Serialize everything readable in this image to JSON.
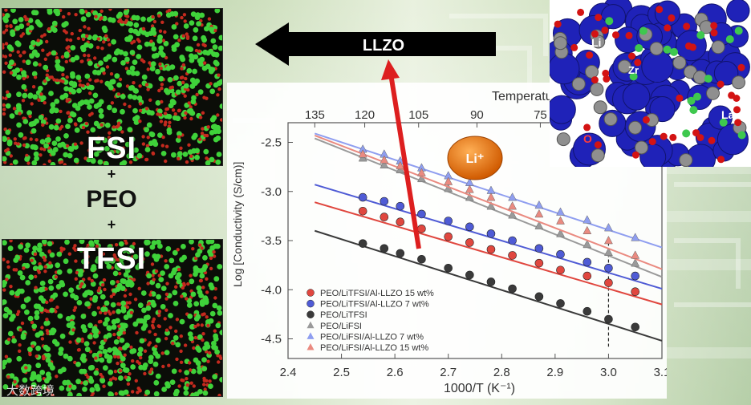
{
  "left_labels": {
    "top": "FSI",
    "plus_1": "+",
    "middle": "PEO",
    "plus_2": "+",
    "bottom": "TFSI"
  },
  "arrow_label": "LLZO",
  "ion_badge": "Li⁺",
  "crystal_labels": [
    "Li",
    "Zr",
    "La",
    "O"
  ],
  "watermark": "大数跨境",
  "colors": {
    "red": "#e0473f",
    "blue": "#4f5bd5",
    "black": "#3a3a3a",
    "gray": "#9a9a9a",
    "light_blue": "#8f9ef0",
    "light_red": "#ea8a80",
    "arrow": "#dd1f1f",
    "badge": "#e8730e"
  },
  "chart_data": {
    "type": "scatter",
    "title": "",
    "xlabel": "1000/T (K⁻¹)",
    "ylabel": "Log [Conductivity (S/cm)]",
    "top_axis_label": "Temperature (°C)",
    "xlim": [
      2.4,
      3.1
    ],
    "ylim": [
      -4.7,
      -2.3
    ],
    "x_ticks": [
      "2.4",
      "2.5",
      "2.6",
      "2.7",
      "2.8",
      "2.9",
      "3.0",
      "3.1"
    ],
    "y_ticks": [
      "-2.5",
      "-3.0",
      "-3.5",
      "-4.0",
      "-4.5"
    ],
    "y_tick_values": [
      -2.5,
      -3.0,
      -3.5,
      -4.0,
      -4.5
    ],
    "x_tick_values": [
      2.4,
      2.5,
      2.6,
      2.7,
      2.8,
      2.9,
      3.0,
      3.1
    ],
    "top_ticks": [
      "135",
      "120",
      "105",
      "90",
      "75"
    ],
    "top_tick_values_c": [
      135,
      120,
      105,
      90,
      75
    ],
    "reference_line_x": 3.0,
    "series": [
      {
        "name": "PEO/LiTFSI/Al-LLZO 15 wt%",
        "color_key": "red",
        "marker": "circle",
        "fit": [
          [
            2.45,
            -3.11
          ],
          [
            3.1,
            -4.15
          ]
        ],
        "x": [
          2.54,
          2.58,
          2.61,
          2.65,
          2.7,
          2.74,
          2.78,
          2.82,
          2.87,
          2.91,
          2.96,
          3.0,
          3.05
        ],
        "y": [
          -3.2,
          -3.26,
          -3.31,
          -3.38,
          -3.46,
          -3.52,
          -3.59,
          -3.65,
          -3.73,
          -3.8,
          -3.86,
          -3.93,
          -4.02
        ]
      },
      {
        "name": "PEO/LiTFSI/Al-LLZO 7 wt%",
        "color_key": "blue",
        "marker": "circle",
        "fit": [
          [
            2.45,
            -2.93
          ],
          [
            3.1,
            -3.99
          ]
        ],
        "x": [
          2.54,
          2.58,
          2.61,
          2.65,
          2.7,
          2.74,
          2.78,
          2.82,
          2.87,
          2.91,
          2.96,
          3.0,
          3.05
        ],
        "y": [
          -3.06,
          -3.1,
          -3.15,
          -3.23,
          -3.3,
          -3.36,
          -3.43,
          -3.5,
          -3.58,
          -3.64,
          -3.72,
          -3.78,
          -3.86
        ]
      },
      {
        "name": "PEO/LiTFSI",
        "color_key": "black",
        "marker": "circle",
        "fit": [
          [
            2.45,
            -3.4
          ],
          [
            3.1,
            -4.52
          ]
        ],
        "x": [
          2.54,
          2.58,
          2.61,
          2.65,
          2.7,
          2.74,
          2.78,
          2.82,
          2.87,
          2.91,
          2.96,
          3.0,
          3.05
        ],
        "y": [
          -3.53,
          -3.58,
          -3.63,
          -3.69,
          -3.78,
          -3.85,
          -3.92,
          -3.99,
          -4.07,
          -4.14,
          -4.22,
          -4.3,
          -4.38
        ]
      },
      {
        "name": "PEO/LiFSI",
        "color_key": "gray",
        "marker": "triangle",
        "fit": [
          [
            2.45,
            -2.46
          ],
          [
            3.1,
            -3.87
          ]
        ],
        "x": [
          2.54,
          2.58,
          2.61,
          2.65,
          2.7,
          2.74,
          2.78,
          2.82,
          2.87,
          2.91,
          2.96,
          3.0,
          3.05
        ],
        "y": [
          -2.66,
          -2.73,
          -2.78,
          -2.87,
          -2.97,
          -3.06,
          -3.15,
          -3.24,
          -3.35,
          -3.43,
          -3.54,
          -3.62,
          -3.73
        ]
      },
      {
        "name": "PEO/LiFSI/Al-LLZO 7 wt%",
        "color_key": "light_blue",
        "marker": "triangle",
        "fit": [
          [
            2.45,
            -2.41
          ],
          [
            3.1,
            -3.57
          ]
        ],
        "x": [
          2.54,
          2.58,
          2.61,
          2.65,
          2.7,
          2.74,
          2.78,
          2.82,
          2.87,
          2.91,
          2.96,
          3.0,
          3.05
        ],
        "y": [
          -2.57,
          -2.62,
          -2.69,
          -2.76,
          -2.84,
          -2.91,
          -2.99,
          -3.06,
          -3.14,
          -3.21,
          -3.29,
          -3.37,
          -3.47
        ]
      },
      {
        "name": "PEO/LiFSI/Al-LLZO 15 wt%",
        "color_key": "light_red",
        "marker": "triangle",
        "fit": [
          [
            2.45,
            -2.43
          ],
          [
            3.1,
            -3.79
          ]
        ],
        "x": [
          2.54,
          2.58,
          2.61,
          2.65,
          2.7,
          2.74,
          2.78,
          2.82,
          2.87,
          2.91,
          2.96,
          3.0,
          3.05
        ],
        "y": [
          -2.62,
          -2.68,
          -2.74,
          -2.81,
          -2.9,
          -2.98,
          -3.06,
          -3.15,
          -3.23,
          -3.3,
          -3.4,
          -3.5,
          -3.65
        ]
      }
    ]
  }
}
